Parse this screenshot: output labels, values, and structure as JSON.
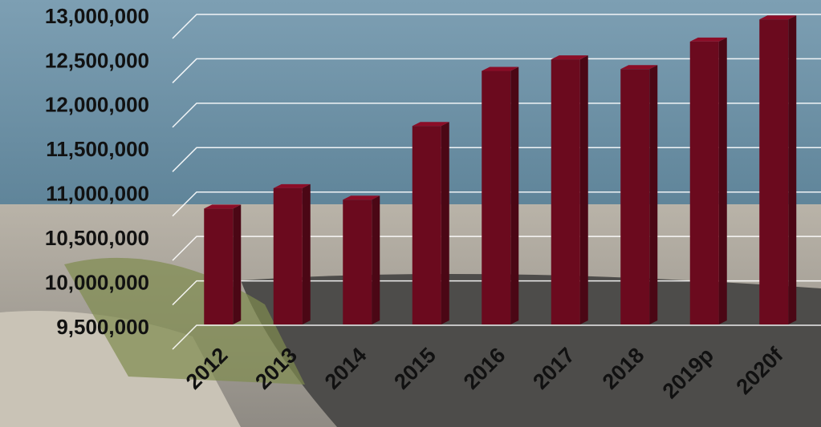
{
  "chart_data": {
    "type": "bar",
    "categories": [
      "2012",
      "2013",
      "2014",
      "2015",
      "2016",
      "2017",
      "2018",
      "2019p",
      "2020f"
    ],
    "values": [
      10850000,
      11080000,
      10950000,
      11780000,
      12400000,
      12530000,
      12420000,
      12730000,
      12980000
    ],
    "color": "#6b0a1e",
    "ylim": [
      9500000,
      13000000
    ],
    "yticks": [
      {
        "value": 9500000,
        "label": "9,500,000"
      },
      {
        "value": 10000000,
        "label": "10,000,000"
      },
      {
        "value": 10500000,
        "label": "10,500,000"
      },
      {
        "value": 11000000,
        "label": "11,000,000"
      },
      {
        "value": 11500000,
        "label": "11,500,000"
      },
      {
        "value": 12000000,
        "label": "12,000,000"
      },
      {
        "value": 12500000,
        "label": "12,500,000"
      },
      {
        "value": 13000000,
        "label": "13,000,000"
      }
    ],
    "grid": true
  }
}
